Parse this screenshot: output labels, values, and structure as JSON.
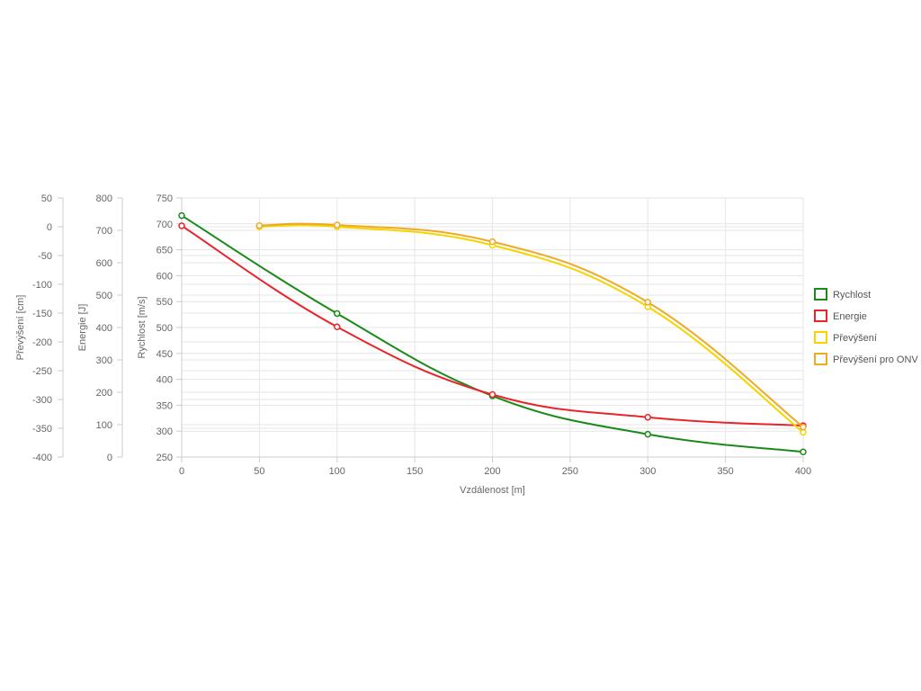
{
  "chart_data": {
    "type": "line",
    "xlabel": "Vzdálenost [m]",
    "x": [
      0,
      100,
      200,
      300,
      400
    ],
    "xlim": [
      0,
      400
    ],
    "xticks": [
      "0",
      "50",
      "100",
      "150",
      "200",
      "250",
      "300",
      "350",
      "400"
    ],
    "y_axes": [
      {
        "id": "prevyseni",
        "label": "Převýšení [cm]",
        "ylim": [
          -400,
          50
        ],
        "ticks": [
          "50",
          "0",
          "-50",
          "-100",
          "-150",
          "-200",
          "-250",
          "-300",
          "-350",
          "-400"
        ]
      },
      {
        "id": "energie",
        "label": "Energie [J]",
        "ylim": [
          0,
          800
        ],
        "ticks": [
          "800",
          "700",
          "600",
          "500",
          "400",
          "300",
          "200",
          "100",
          "0"
        ]
      },
      {
        "id": "rychlost",
        "label": "Rychlost [m/s]",
        "ylim": [
          250,
          750
        ],
        "ticks": [
          "750",
          "700",
          "650",
          "600",
          "550",
          "500",
          "450",
          "400",
          "350",
          "300",
          "250"
        ]
      }
    ],
    "series": [
      {
        "name": "Rychlost",
        "axis": "rychlost",
        "color": "#1a8a1a",
        "points": [
          [
            0,
            716
          ],
          [
            100,
            527
          ],
          [
            200,
            368
          ],
          [
            300,
            294
          ],
          [
            400,
            260
          ]
        ]
      },
      {
        "name": "Energie",
        "axis": "energie",
        "color": "#e8262a",
        "points": [
          [
            0,
            714
          ],
          [
            100,
            402
          ],
          [
            200,
            193
          ],
          [
            300,
            123
          ],
          [
            400,
            97
          ]
        ]
      },
      {
        "name": "Převýšení",
        "axis": "prevyseni",
        "color": "#f5d400",
        "points": [
          [
            50,
            0
          ],
          [
            100,
            0
          ],
          [
            200,
            -32
          ],
          [
            300,
            -139
          ],
          [
            400,
            -357
          ]
        ]
      },
      {
        "name": "Převýšení pro ONV",
        "axis": "prevyseni",
        "color": "#eeaa22",
        "points": [
          [
            50,
            2
          ],
          [
            100,
            3
          ],
          [
            200,
            -26
          ],
          [
            300,
            -131
          ],
          [
            400,
            -348
          ]
        ]
      }
    ],
    "legend_position": "right",
    "grid": true
  }
}
